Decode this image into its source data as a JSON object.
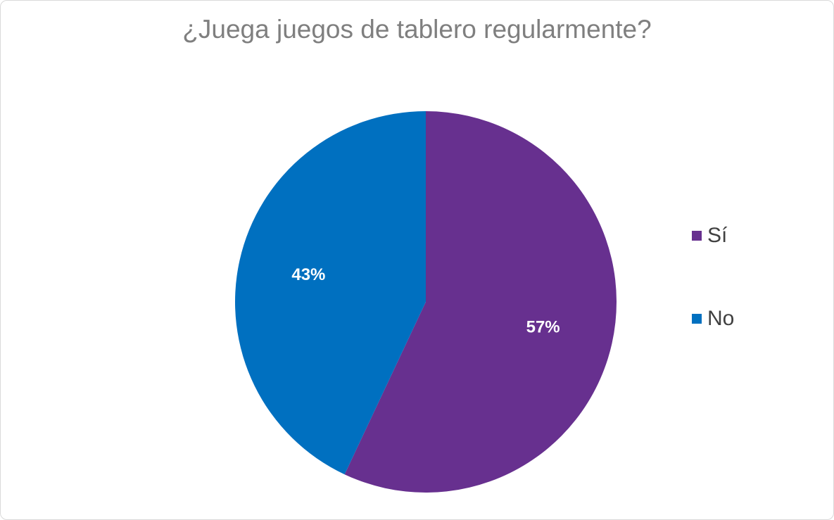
{
  "chart_data": {
    "type": "pie",
    "title": "¿Juega juegos de tablero regularmente?",
    "categories": [
      "Sí",
      "No"
    ],
    "values": [
      57,
      43
    ],
    "value_labels": [
      "57%",
      "43%"
    ],
    "colors": [
      "#67308F",
      "#0070C0"
    ],
    "start_angle_deg": 0,
    "direction": "clockwise",
    "legend_position": "right"
  }
}
